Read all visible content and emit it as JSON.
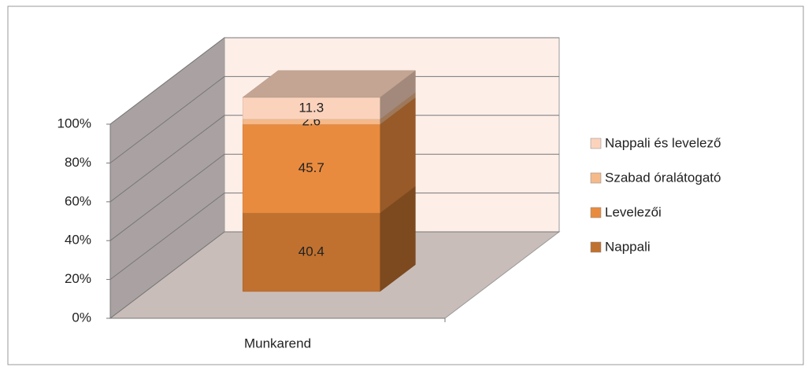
{
  "chart_data": {
    "type": "bar3d_stacked",
    "categories": [
      "Munkarend"
    ],
    "series": [
      {
        "name": "Nappali",
        "color": "#c0712f",
        "values": [
          40.4
        ]
      },
      {
        "name": "Levelezői",
        "color": "#e98b3e",
        "values": [
          45.7
        ]
      },
      {
        "name": "Szabad óralátogató",
        "color": "#f5b98a",
        "values": [
          2.6
        ]
      },
      {
        "name": "Nappali és levelező",
        "color": "#fbd3bd",
        "values": [
          11.3
        ]
      }
    ],
    "ylim": [
      0,
      100
    ],
    "yticks": [
      {
        "value": 0,
        "label": "0%"
      },
      {
        "value": 20,
        "label": "20%"
      },
      {
        "value": 40,
        "label": "40%"
      },
      {
        "value": 60,
        "label": "60%"
      },
      {
        "value": 80,
        "label": "80%"
      },
      {
        "value": 100,
        "label": "100%"
      }
    ],
    "grid": true,
    "legend": "right"
  }
}
